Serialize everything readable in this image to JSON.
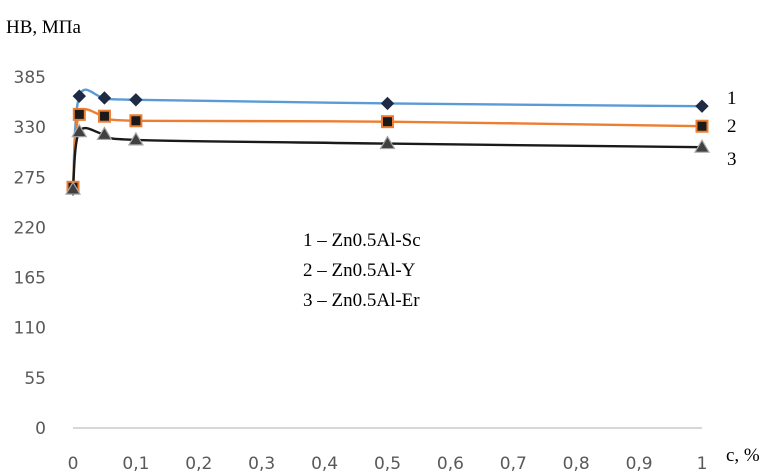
{
  "chart_data": {
    "type": "line",
    "ylabel": "HB, МПа",
    "xlabel": "c, %",
    "ylim": [
      0,
      385
    ],
    "xlim": [
      0,
      1
    ],
    "yticks": [
      "0",
      "55",
      "110",
      "165",
      "220",
      "275",
      "330",
      "385"
    ],
    "xticks": [
      "0",
      "0,1",
      "0,2",
      "0,3",
      "0,4",
      "0,5",
      "0,6",
      "0,7",
      "0,8",
      "0,9",
      "1"
    ],
    "grid": false,
    "legend_lines": [
      "1 – Zn0.5Al-Sc",
      "2 – Zn0.5Al-Y",
      "3 – Zn0.5Al-Er"
    ],
    "series": [
      {
        "label": "1",
        "color": "#5B9BD5",
        "marker": "diamond",
        "x": [
          0,
          0.01,
          0.05,
          0.1,
          0.5,
          1
        ],
        "y": [
          262,
          364,
          362,
          360,
          356,
          353
        ]
      },
      {
        "label": "2",
        "color": "#ED7D31",
        "marker": "square",
        "x": [
          0,
          0.01,
          0.05,
          0.1,
          0.5,
          1
        ],
        "y": [
          264,
          344,
          342,
          337,
          336,
          331
        ]
      },
      {
        "label": "3",
        "color": "#1a1a1a",
        "marker": "triangle",
        "x": [
          0,
          0.01,
          0.05,
          0.1,
          0.5,
          1
        ],
        "y": [
          262,
          325,
          322,
          316,
          312,
          308
        ]
      }
    ]
  }
}
